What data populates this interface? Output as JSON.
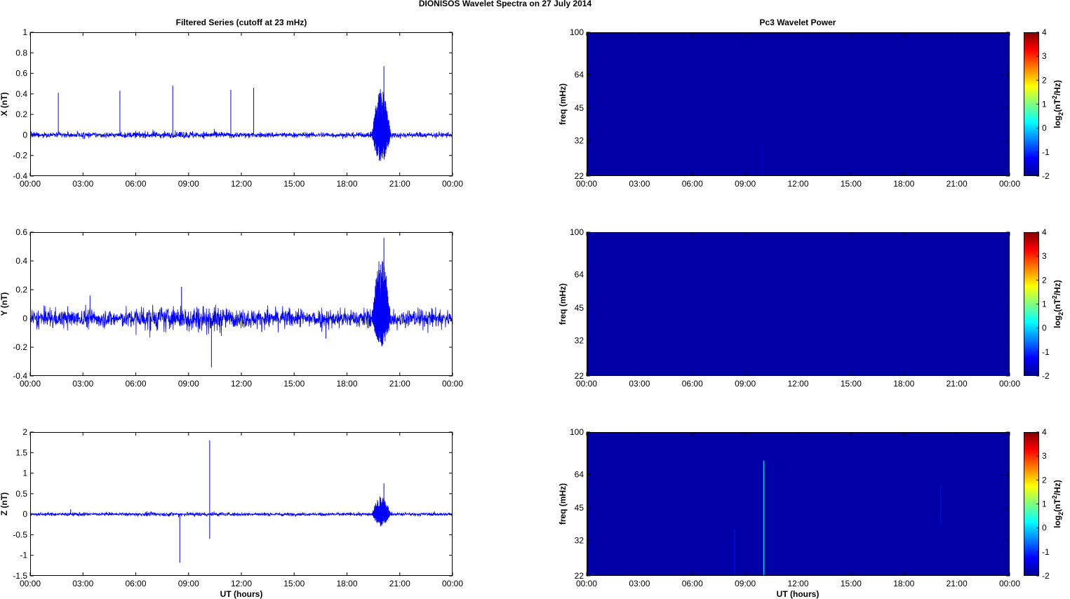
{
  "figure": {
    "title": "DIONISOS Wavelet Spectra on 27 July      2014",
    "left_title": "Filtered Series (cutoff at 23 mHz)",
    "right_title": "Pc3 Wavelet Power",
    "xlabel": "UT (hours)"
  },
  "colors": {
    "series": "#0000ff",
    "spectrum_bg": "#0000a6"
  },
  "chart_data": [
    {
      "type": "line",
      "ylabel": "X (nT)",
      "xlim": [
        0,
        24
      ],
      "ylim": [
        -0.4,
        1
      ],
      "yticks": [
        "-0.4",
        "-0.2",
        "0",
        "0.2",
        "0.4",
        "0.6",
        "0.8",
        "1"
      ],
      "xticks": [
        "00:00",
        "03:00",
        "06:00",
        "09:00",
        "12:00",
        "15:00",
        "18:00",
        "21:00",
        "00:00"
      ],
      "noise_level": 0.02,
      "burst": {
        "start": 19.4,
        "end": 20.5,
        "upper": 0.45,
        "lower": -0.28
      },
      "spikes": [
        {
          "x": 1.6,
          "y": 0.41
        },
        {
          "x": 5.1,
          "y": 0.43
        },
        {
          "x": 8.1,
          "y": 0.48
        },
        {
          "x": 11.4,
          "y": 0.44
        },
        {
          "x": 12.7,
          "y": 0.46
        },
        {
          "x": 20.1,
          "y": 0.67
        },
        {
          "x": 19.9,
          "y": -0.25
        }
      ]
    },
    {
      "type": "line",
      "ylabel": "Y (nT)",
      "xlim": [
        0,
        24
      ],
      "ylim": [
        -0.4,
        0.6
      ],
      "yticks": [
        "-0.4",
        "-0.2",
        "0",
        "0.2",
        "0.4",
        "0.6"
      ],
      "xticks": [
        "00:00",
        "03:00",
        "06:00",
        "09:00",
        "12:00",
        "15:00",
        "18:00",
        "21:00",
        "00:00"
      ],
      "noise_level": 0.05,
      "burst": {
        "start": 19.4,
        "end": 20.5,
        "upper": 0.44,
        "lower": -0.2
      },
      "spikes": [
        {
          "x": 8.6,
          "y": 0.22
        },
        {
          "x": 10.3,
          "y": -0.34
        },
        {
          "x": 20.1,
          "y": 0.56
        },
        {
          "x": 16.8,
          "y": -0.14
        },
        {
          "x": 3.4,
          "y": 0.16
        }
      ]
    },
    {
      "type": "line",
      "ylabel": "Z (nT)",
      "xlim": [
        0,
        24
      ],
      "ylim": [
        -1.5,
        2
      ],
      "yticks": [
        "-1.5",
        "-1",
        "-0.5",
        "0",
        "0.5",
        "1",
        "1.5",
        "2"
      ],
      "xticks": [
        "00:00",
        "03:00",
        "06:00",
        "09:00",
        "12:00",
        "15:00",
        "18:00",
        "21:00",
        "00:00"
      ],
      "noise_level": 0.03,
      "burst": {
        "start": 19.4,
        "end": 20.5,
        "upper": 0.45,
        "lower": -0.3
      },
      "spikes": [
        {
          "x": 10.2,
          "y": 1.8
        },
        {
          "x": 8.5,
          "y": -1.18
        },
        {
          "x": 10.2,
          "y": -0.6
        },
        {
          "x": 20.1,
          "y": 0.75
        },
        {
          "x": 2.3,
          "y": 0.12
        }
      ]
    },
    {
      "type": "heatmap",
      "ylabel": "freq (mHz)",
      "yscale": "log",
      "xlim": [
        0,
        24
      ],
      "ylim": [
        22,
        100
      ],
      "yticks": [
        "22",
        "32",
        "45",
        "64",
        "100"
      ],
      "xticks": [
        "00:00",
        "03:00",
        "06:00",
        "09:00",
        "12:00",
        "15:00",
        "18:00",
        "21:00",
        "00:00"
      ],
      "colorbar": {
        "label": "log2(nT^2/Hz)",
        "range": [
          -2,
          4
        ],
        "ticks": [
          "-2",
          "-1",
          "0",
          "1",
          "2",
          "3",
          "4"
        ]
      },
      "features": [
        {
          "x": 10.0,
          "f_low": 22,
          "f_high": 30,
          "color": "#0000c8"
        }
      ]
    },
    {
      "type": "heatmap",
      "ylabel": "freq (mHz)",
      "yscale": "log",
      "xlim": [
        0,
        24
      ],
      "ylim": [
        22,
        100
      ],
      "yticks": [
        "22",
        "32",
        "45",
        "64",
        "100"
      ],
      "xticks": [
        "00:00",
        "03:00",
        "06:00",
        "09:00",
        "12:00",
        "15:00",
        "18:00",
        "21:00",
        "00:00"
      ],
      "colorbar": {
        "label": "log2(nT^2/Hz)",
        "range": [
          -2,
          4
        ],
        "ticks": [
          "-2",
          "-1",
          "0",
          "1",
          "2",
          "3",
          "4"
        ]
      },
      "features": []
    },
    {
      "type": "heatmap",
      "ylabel": "freq (mHz)",
      "yscale": "log",
      "xlim": [
        0,
        24
      ],
      "ylim": [
        22,
        100
      ],
      "yticks": [
        "22",
        "32",
        "45",
        "64",
        "100"
      ],
      "xticks": [
        "00:00",
        "03:00",
        "06:00",
        "09:00",
        "12:00",
        "15:00",
        "18:00",
        "21:00",
        "00:00"
      ],
      "colorbar": {
        "label": "log2(nT^2/Hz)",
        "range": [
          -2,
          4
        ],
        "ticks": [
          "-2",
          "-1",
          "0",
          "1",
          "2",
          "3",
          "4"
        ]
      },
      "features": [
        {
          "x": 10.05,
          "f_low": 22,
          "f_high": 74,
          "color": "#00c8ff"
        },
        {
          "x": 8.4,
          "f_low": 22,
          "f_high": 36,
          "color": "#0010e0"
        },
        {
          "x": 20.1,
          "f_low": 38,
          "f_high": 57,
          "color": "#0008d0"
        }
      ]
    }
  ]
}
